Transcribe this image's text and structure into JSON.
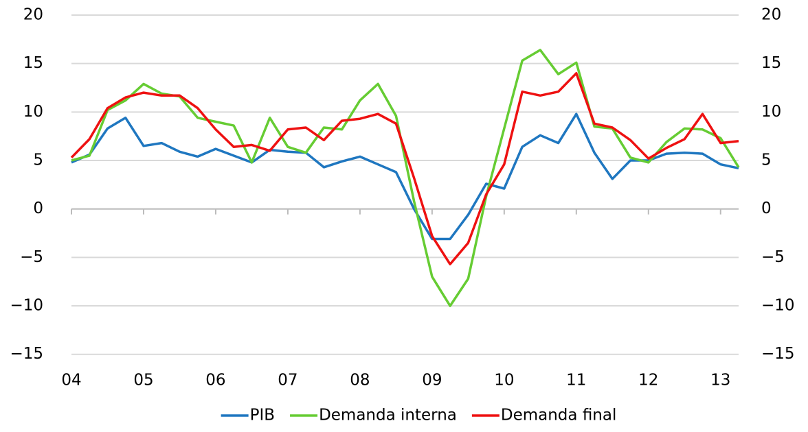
{
  "chart_data": {
    "type": "line",
    "categories": [
      "04",
      null,
      null,
      null,
      "05",
      null,
      null,
      null,
      "06",
      null,
      null,
      null,
      "07",
      null,
      null,
      null,
      "08",
      null,
      null,
      null,
      "09",
      null,
      null,
      null,
      "10",
      null,
      null,
      null,
      "11",
      null,
      null,
      null,
      "12",
      null,
      null,
      null,
      "13",
      null
    ],
    "series": [
      {
        "name": "PIB",
        "color": "#1f77c0",
        "values": [
          4.8,
          5.6,
          8.3,
          9.4,
          6.5,
          6.8,
          5.9,
          5.4,
          6.2,
          5.5,
          4.8,
          6.1,
          5.9,
          5.8,
          4.3,
          4.9,
          5.4,
          4.6,
          3.8,
          0,
          -3.1,
          -3.1,
          -0.6,
          2.6,
          2.1,
          6.4,
          7.6,
          6.8,
          9.8,
          5.8,
          3.1,
          5.0,
          5.0,
          5.7,
          5.8,
          5.7,
          4.6,
          4.2
        ]
      },
      {
        "name": "Demanda interna",
        "color": "#66cc33",
        "values": [
          5.0,
          5.5,
          10.2,
          11.2,
          12.9,
          11.9,
          11.6,
          9.4,
          9.0,
          8.6,
          4.8,
          9.4,
          6.4,
          5.8,
          8.4,
          8.2,
          11.2,
          12.9,
          9.6,
          0.8,
          -7.0,
          -10.0,
          -7.2,
          1.3,
          8.3,
          15.3,
          16.4,
          13.9,
          15.1,
          8.5,
          8.3,
          5.3,
          4.8,
          6.9,
          8.3,
          8.2,
          7.3,
          4.3
        ]
      },
      {
        "name": "Demanda final",
        "color": "#ee1111",
        "values": [
          5.3,
          7.2,
          10.4,
          11.5,
          12.0,
          11.7,
          11.7,
          10.4,
          8.2,
          6.4,
          6.6,
          6.0,
          8.2,
          8.4,
          7.1,
          9.1,
          9.3,
          9.8,
          8.8,
          3.2,
          -2.8,
          -5.7,
          -3.5,
          1.5,
          4.6,
          12.1,
          11.7,
          12.1,
          14.0,
          8.8,
          8.4,
          7.1,
          5.2,
          6.3,
          7.2,
          9.8,
          6.8,
          7.0
        ]
      }
    ],
    "ylim": [
      -17,
      20
    ],
    "yticks": [
      {
        "value": -15,
        "label": "−15"
      },
      {
        "value": -10,
        "label": "−10"
      },
      {
        "value": -5,
        "label": "−5"
      },
      0,
      5,
      10,
      15,
      20
    ],
    "y2lim": [
      -17,
      20
    ],
    "y2ticks": [
      {
        "value": -15,
        "label": "−15"
      },
      {
        "value": -10,
        "label": "−10"
      },
      {
        "value": -5,
        "label": "−5"
      },
      0,
      5,
      10,
      15,
      20
    ],
    "grid": true,
    "legend": "bottom"
  }
}
